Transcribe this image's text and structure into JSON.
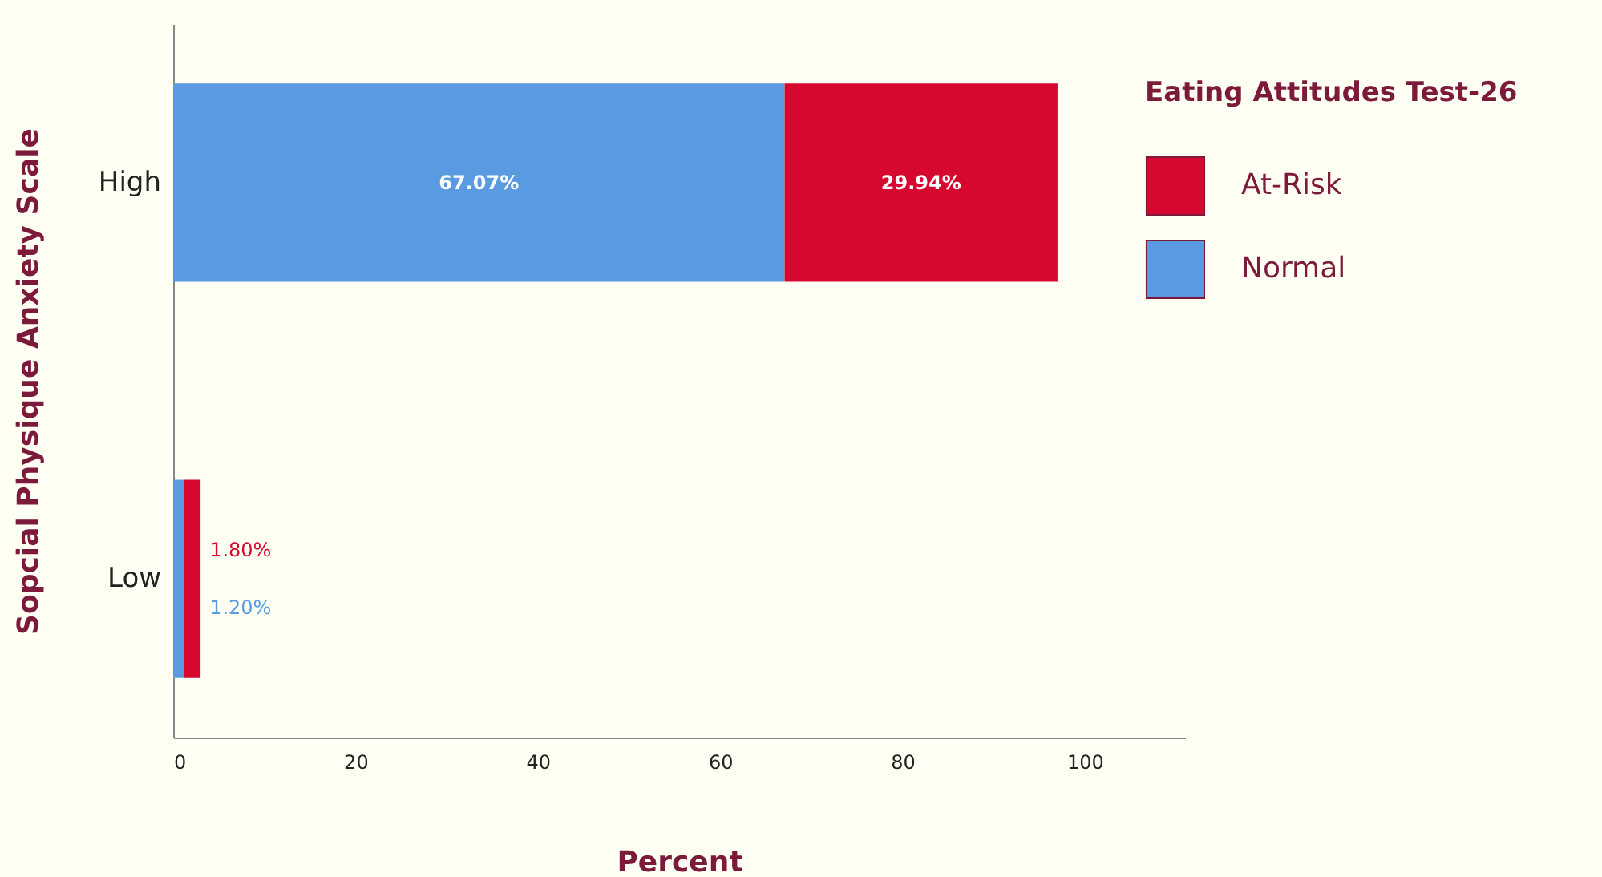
{
  "chart_data": {
    "type": "bar",
    "orientation": "horizontal",
    "stacked": true,
    "xlabel": "Percent",
    "ylabel": "Sopcial Physique Anxiety Scale",
    "legend_title": "Eating Attitudes Test-26",
    "legend": "top right",
    "categories": [
      "High",
      "Low"
    ],
    "series": [
      {
        "name": "Normal",
        "color": "#5a9ae0",
        "values": [
          67.07,
          1.2
        ],
        "value_labels": [
          "67.07%",
          "1.20%"
        ]
      },
      {
        "name": "At-Risk",
        "color": "#d6082f",
        "values": [
          29.94,
          1.8
        ],
        "value_labels": [
          "29.94%",
          "1.80%"
        ]
      }
    ],
    "xlim": [
      0,
      111
    ],
    "xticks": [
      0,
      20,
      40,
      60,
      80,
      100
    ]
  }
}
